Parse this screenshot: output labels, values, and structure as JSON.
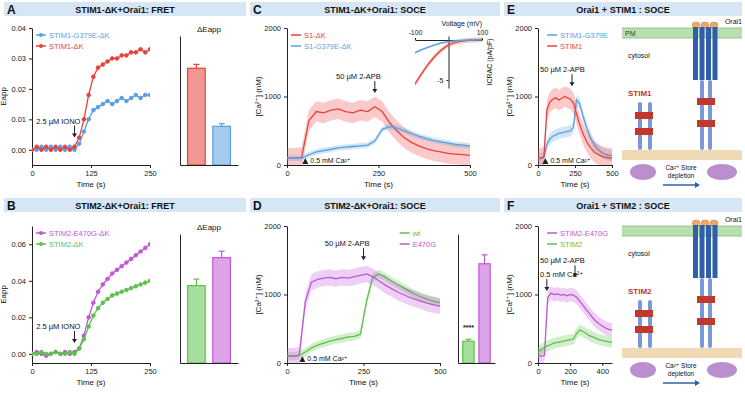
{
  "chart_data": [
    {
      "type": "line",
      "panel": "A",
      "title": "STIM1-ΔK+Orai1: FRET",
      "x_label": "Time (s)",
      "y_label": "Eapp",
      "x": [
        0,
        10,
        20,
        30,
        40,
        50,
        60,
        70,
        80,
        90,
        100,
        110,
        120,
        130,
        140,
        150,
        160,
        170,
        180,
        190,
        200,
        210,
        220,
        230,
        240,
        250
      ],
      "xlim": [
        0,
        250
      ],
      "xticks": [
        0,
        125,
        250
      ],
      "ylim": [
        -0.005,
        0.04
      ],
      "yticks": [
        {
          "value": 0,
          "label": "0.00"
        },
        {
          "value": 0.01,
          "label": "0.01"
        },
        {
          "value": 0.02,
          "label": "0.02"
        },
        {
          "value": 0.03,
          "label": "0.03"
        },
        {
          "value": 0.04,
          "label": "0.04"
        }
      ],
      "marker": "circle",
      "legend": "upper left",
      "series": [
        {
          "name": "STIM1-G379E-ΔK",
          "color": "#5aa0e0",
          "values": [
            0.0,
            0.0,
            0.001,
            0.0,
            0.001,
            0.0,
            0.001,
            0.0,
            0.001,
            0.0,
            0.002,
            0.006,
            0.01,
            0.013,
            0.014,
            0.015,
            0.016,
            0.015,
            0.016,
            0.017,
            0.016,
            0.017,
            0.018,
            0.017,
            0.018,
            0.018
          ]
        },
        {
          "name": "STIM1-ΔK",
          "color": "#e8413c",
          "values": [
            0.0,
            0.001,
            0.0,
            0.001,
            0.0,
            0.001,
            0.0,
            0.001,
            0.0,
            0.001,
            0.004,
            0.01,
            0.018,
            0.024,
            0.027,
            0.028,
            0.029,
            0.03,
            0.03,
            0.031,
            0.031,
            0.032,
            0.032,
            0.033,
            0.032,
            0.033
          ]
        }
      ],
      "annotations": [
        {
          "text": "2.5 µM IONO",
          "x": 90,
          "y": 0.004
        }
      ]
    },
    {
      "type": "bar",
      "title": "ΔEapp",
      "categories": [
        null,
        null
      ],
      "values": [
        0.03,
        0.012
      ],
      "errors": [
        0.0012,
        0.0008
      ],
      "colors": [
        "#e8413c",
        "#5aa0e0"
      ],
      "ylim": [
        0,
        0.04
      ],
      "tick_labels": false
    },
    {
      "type": "line",
      "panel": "B",
      "title": "STIM2-ΔK+Orai1: FRET",
      "x_label": "Time (s)",
      "y_label": "Eapp",
      "x": [
        0,
        10,
        20,
        30,
        40,
        50,
        60,
        70,
        80,
        90,
        100,
        110,
        120,
        130,
        140,
        150,
        160,
        170,
        180,
        190,
        200,
        210,
        220,
        230,
        240,
        250
      ],
      "xlim": [
        0,
        250
      ],
      "xticks": [
        0,
        125,
        250
      ],
      "ylim": [
        -0.005,
        0.07
      ],
      "yticks": [
        {
          "value": 0,
          "label": "0.00"
        },
        {
          "value": 0.02,
          "label": "0.02"
        },
        {
          "value": 0.04,
          "label": "0.04"
        },
        {
          "value": 0.06,
          "label": "0.06"
        }
      ],
      "marker": "circle",
      "legend": "upper left",
      "series": [
        {
          "name": "STIM2-E470G-ΔK",
          "color": "#c157d6",
          "values": [
            0.0,
            0.001,
            0.0,
            -0.001,
            0.0,
            0.001,
            0.0,
            0.001,
            0.0,
            0.001,
            0.003,
            0.01,
            0.02,
            0.028,
            0.034,
            0.038,
            0.041,
            0.044,
            0.046,
            0.048,
            0.05,
            0.052,
            0.054,
            0.056,
            0.058,
            0.06
          ]
        },
        {
          "name": "STIM2-ΔK",
          "color": "#5cc24a",
          "values": [
            0.0,
            0.0,
            0.001,
            0.0,
            0.0,
            0.001,
            0.0,
            0.0,
            0.001,
            0.0,
            0.003,
            0.008,
            0.015,
            0.021,
            0.025,
            0.028,
            0.03,
            0.032,
            0.033,
            0.034,
            0.035,
            0.036,
            0.037,
            0.038,
            0.039,
            0.04
          ]
        }
      ],
      "annotations": [
        {
          "text": "2.5 µM IONO",
          "x": 90,
          "y": 0.006
        }
      ]
    },
    {
      "type": "bar",
      "title": "ΔEapp",
      "categories": [
        null,
        null
      ],
      "values": [
        0.036,
        0.049
      ],
      "errors": [
        0.003,
        0.003
      ],
      "colors": [
        "#5cc24a",
        "#c157d6"
      ],
      "ylim": [
        0,
        0.06
      ],
      "tick_labels": false
    },
    {
      "type": "line",
      "panel": "C",
      "title": "STIM1-ΔK+Orai1: SOCE",
      "x_label": "Time (s)",
      "y_label": "[Ca²⁺] (nM)",
      "x": [
        0,
        20,
        40,
        60,
        80,
        100,
        120,
        140,
        160,
        180,
        200,
        220,
        240,
        260,
        280,
        300,
        320,
        340,
        360,
        380,
        400,
        420,
        440,
        460,
        480,
        500
      ],
      "xlim": [
        0,
        500
      ],
      "xticks": [
        0,
        250,
        500
      ],
      "ylim": [
        0,
        2000
      ],
      "yticks": [
        0,
        1000,
        2000
      ],
      "marker": "none",
      "legend": "upper left",
      "series": [
        {
          "name": "S1-ΔK",
          "color": "#e8413c",
          "error": 150,
          "values": [
            100,
            100,
            110,
            650,
            780,
            760,
            800,
            820,
            780,
            760,
            800,
            780,
            850,
            780,
            620,
            500,
            400,
            330,
            280,
            240,
            210,
            190,
            170,
            160,
            150,
            140
          ]
        },
        {
          "name": "S1-G379E-ΔK",
          "color": "#5aa0e0",
          "error": 40,
          "values": [
            100,
            100,
            100,
            150,
            190,
            210,
            230,
            250,
            260,
            270,
            280,
            290,
            350,
            520,
            560,
            540,
            500,
            460,
            420,
            390,
            360,
            340,
            320,
            300,
            290,
            280
          ]
        }
      ],
      "annotations": [
        {
          "text": "50 µM 2-APB",
          "x": 240,
          "y": 1050
        },
        {
          "text": "0.5 mM Ca²⁺",
          "x": 50,
          "y": 0
        }
      ]
    },
    {
      "type": "line",
      "x_label": "Voltage (mV)",
      "y_label": "ICRAC (pA/pF)",
      "x": [
        -100,
        -80,
        -60,
        -40,
        -20,
        0,
        20,
        40,
        60,
        80,
        100
      ],
      "xlim": [
        -100,
        100
      ],
      "xticks": [
        -100,
        100
      ],
      "ylim": [
        -6,
        0.5
      ],
      "yticks": [
        -5
      ],
      "marker": "none",
      "series": [
        {
          "color": "#e8413c",
          "error": 0.3,
          "values": [
            -5.5,
            -4.2,
            -3.0,
            -2.0,
            -1.2,
            -0.6,
            -0.3,
            -0.15,
            -0.05,
            0.0,
            0.05
          ]
        },
        {
          "color": "#5aa0e0",
          "error": 0.15,
          "values": [
            -1.6,
            -1.2,
            -0.9,
            -0.6,
            -0.35,
            -0.2,
            -0.1,
            -0.05,
            0.0,
            0.0,
            0.02
          ]
        }
      ]
    },
    {
      "type": "line",
      "panel": "D",
      "title": "STIM2-ΔK+Orai1: SOCE",
      "x_label": "Time (s)",
      "y_label": "[Ca²⁺] (nM)",
      "x": [
        0,
        20,
        40,
        60,
        80,
        100,
        120,
        140,
        160,
        180,
        200,
        220,
        240,
        260,
        280,
        300,
        320,
        340,
        360,
        380,
        400,
        420,
        440,
        460,
        480,
        500
      ],
      "xlim": [
        0,
        500
      ],
      "xticks": [
        0,
        250,
        500
      ],
      "ylim": [
        0,
        2000
      ],
      "yticks": [
        0,
        1000,
        2000
      ],
      "marker": "none",
      "legend": "upper right",
      "series": [
        {
          "name": "wt",
          "color": "#5cc24a",
          "error": 60,
          "values": [
            100,
            100,
            110,
            160,
            220,
            260,
            290,
            320,
            340,
            360,
            380,
            390,
            420,
            900,
            1250,
            1300,
            1260,
            1200,
            1150,
            1100,
            1050,
            1000,
            960,
            930,
            900,
            880
          ]
        },
        {
          "name": "E470G",
          "color": "#c157d6",
          "error": 120,
          "values": [
            100,
            100,
            110,
            900,
            1180,
            1220,
            1240,
            1250,
            1230,
            1250,
            1240,
            1260,
            1280,
            1300,
            1260,
            1200,
            1140,
            1090,
            1040,
            1000,
            960,
            930,
            900,
            870,
            850,
            830
          ]
        }
      ],
      "annotations": [
        {
          "text": "50 µM 2-APB",
          "x": 250,
          "y": 1500
        },
        {
          "text": "0.5 mM Ca²⁺",
          "x": 50,
          "y": 0
        }
      ]
    },
    {
      "type": "bar",
      "categories": [
        null,
        null
      ],
      "values": [
        220,
        1000
      ],
      "errors": [
        20,
        90
      ],
      "colors": [
        "#5cc24a",
        "#c157d6"
      ],
      "ylim": [
        0,
        1300
      ],
      "tick_labels": false,
      "annotations": [
        {
          "text": "****",
          "x": 0,
          "y": 330
        }
      ]
    },
    {
      "type": "line",
      "panel": "E",
      "title": "Orai1 + STIM1 : SOCE",
      "x_label": "Time (s)",
      "y_label": "[Ca²⁺] (nM)",
      "x": [
        0,
        20,
        40,
        60,
        80,
        100,
        120,
        140,
        160,
        180,
        200,
        220,
        240,
        260,
        280,
        300,
        320,
        340,
        360,
        380,
        400,
        420,
        440,
        460,
        480,
        500
      ],
      "xlim": [
        0,
        500
      ],
      "xticks": [
        0,
        250,
        500
      ],
      "ylim": [
        0,
        2000
      ],
      "yticks": [
        0,
        1000,
        2000
      ],
      "marker": "none",
      "legend": "upper right",
      "series": [
        {
          "name": "STIM1-G379E",
          "color": "#5aa0e0",
          "error": 80,
          "values": [
            100,
            100,
            110,
            300,
            380,
            420,
            440,
            460,
            470,
            480,
            490,
            500,
            550,
            950,
            900,
            750,
            600,
            480,
            380,
            300,
            240,
            200,
            170,
            150,
            140,
            130
          ]
        },
        {
          "name": "STIM1",
          "color": "#e8413c",
          "error": 150,
          "values": [
            100,
            100,
            120,
            800,
            920,
            960,
            980,
            950,
            970,
            1000,
            980,
            960,
            900,
            750,
            600,
            480,
            380,
            300,
            240,
            190,
            160,
            140,
            120,
            110,
            100,
            100
          ]
        }
      ],
      "annotations": [
        {
          "text": "50 µM 2-APB",
          "x": 230,
          "y": 1150
        },
        {
          "text": "0.5 mM Ca²⁺",
          "x": 50,
          "y": 0
        }
      ]
    },
    {
      "type": "line",
      "panel": "F",
      "title": "Orai1 + STIM2 : SOCE",
      "x_label": "Time (s)",
      "y_label": "[Ca²⁺] (nM)",
      "x": [
        0,
        20,
        40,
        60,
        80,
        100,
        120,
        140,
        160,
        180,
        200,
        220,
        240,
        260,
        280,
        300,
        320,
        340,
        360,
        380,
        400,
        420,
        440,
        460
      ],
      "xlim": [
        0,
        460
      ],
      "xticks": [
        0,
        200,
        400
      ],
      "ylim": [
        0,
        2000
      ],
      "yticks": [
        0,
        1000,
        2000
      ],
      "marker": "none",
      "legend": "upper right",
      "series": [
        {
          "name": "STIM2-E470G",
          "color": "#c157d6",
          "error": 100,
          "values": [
            100,
            100,
            110,
            950,
            1020,
            1000,
            1010,
            990,
            1000,
            980,
            1000,
            990,
            960,
            900,
            840,
            780,
            720,
            660,
            610,
            570,
            540,
            510,
            490,
            480
          ]
        },
        {
          "name": "STIM2",
          "color": "#5cc24a",
          "error": 80,
          "values": [
            150,
            200,
            230,
            250,
            270,
            290,
            300,
            310,
            320,
            330,
            340,
            350,
            430,
            480,
            460,
            430,
            400,
            380,
            360,
            340,
            330,
            320,
            310,
            300
          ]
        }
      ],
      "annotations": [
        {
          "text": "0.5 mM Ca²⁺",
          "x": 55,
          "y": 1050
        },
        {
          "text": "50 µM 2-APB",
          "x": 230,
          "y": 1250
        }
      ]
    }
  ],
  "diagrams": [
    {
      "membrane": "PM",
      "channel": "Orai1",
      "compartment": "cytosol",
      "protein": "STIM1",
      "arrow_lines": [
        "Ca²⁺ Store",
        "depletion"
      ]
    },
    {
      "channel": "Orai1",
      "compartment": "cytosol",
      "protein": "STIM2",
      "arrow_lines": [
        "Ca²⁺ Store",
        "depletion"
      ]
    }
  ]
}
